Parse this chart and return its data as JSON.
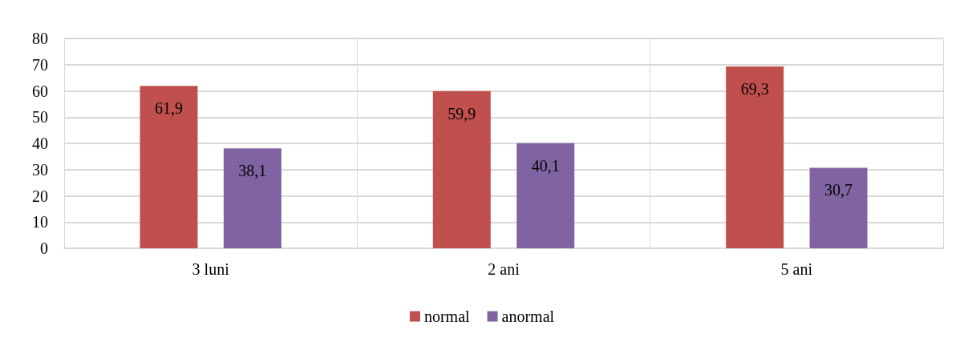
{
  "chart_data": {
    "type": "bar",
    "categories": [
      "3 luni",
      "2 ani",
      "5 ani"
    ],
    "series": [
      {
        "name": "normal",
        "color": "#c0504d",
        "values": [
          61.9,
          59.9,
          69.3
        ],
        "value_labels": [
          "61,9",
          "59,9",
          "69,3"
        ]
      },
      {
        "name": "anormal",
        "color": "#8064a2",
        "values": [
          38.1,
          40.1,
          30.7
        ],
        "value_labels": [
          "38,1",
          "40,1",
          "30,7"
        ]
      }
    ],
    "ylim": [
      0,
      80
    ],
    "yticks": [
      0,
      10,
      20,
      30,
      40,
      50,
      60,
      70,
      80
    ],
    "grid": true,
    "legend": "bottom"
  }
}
